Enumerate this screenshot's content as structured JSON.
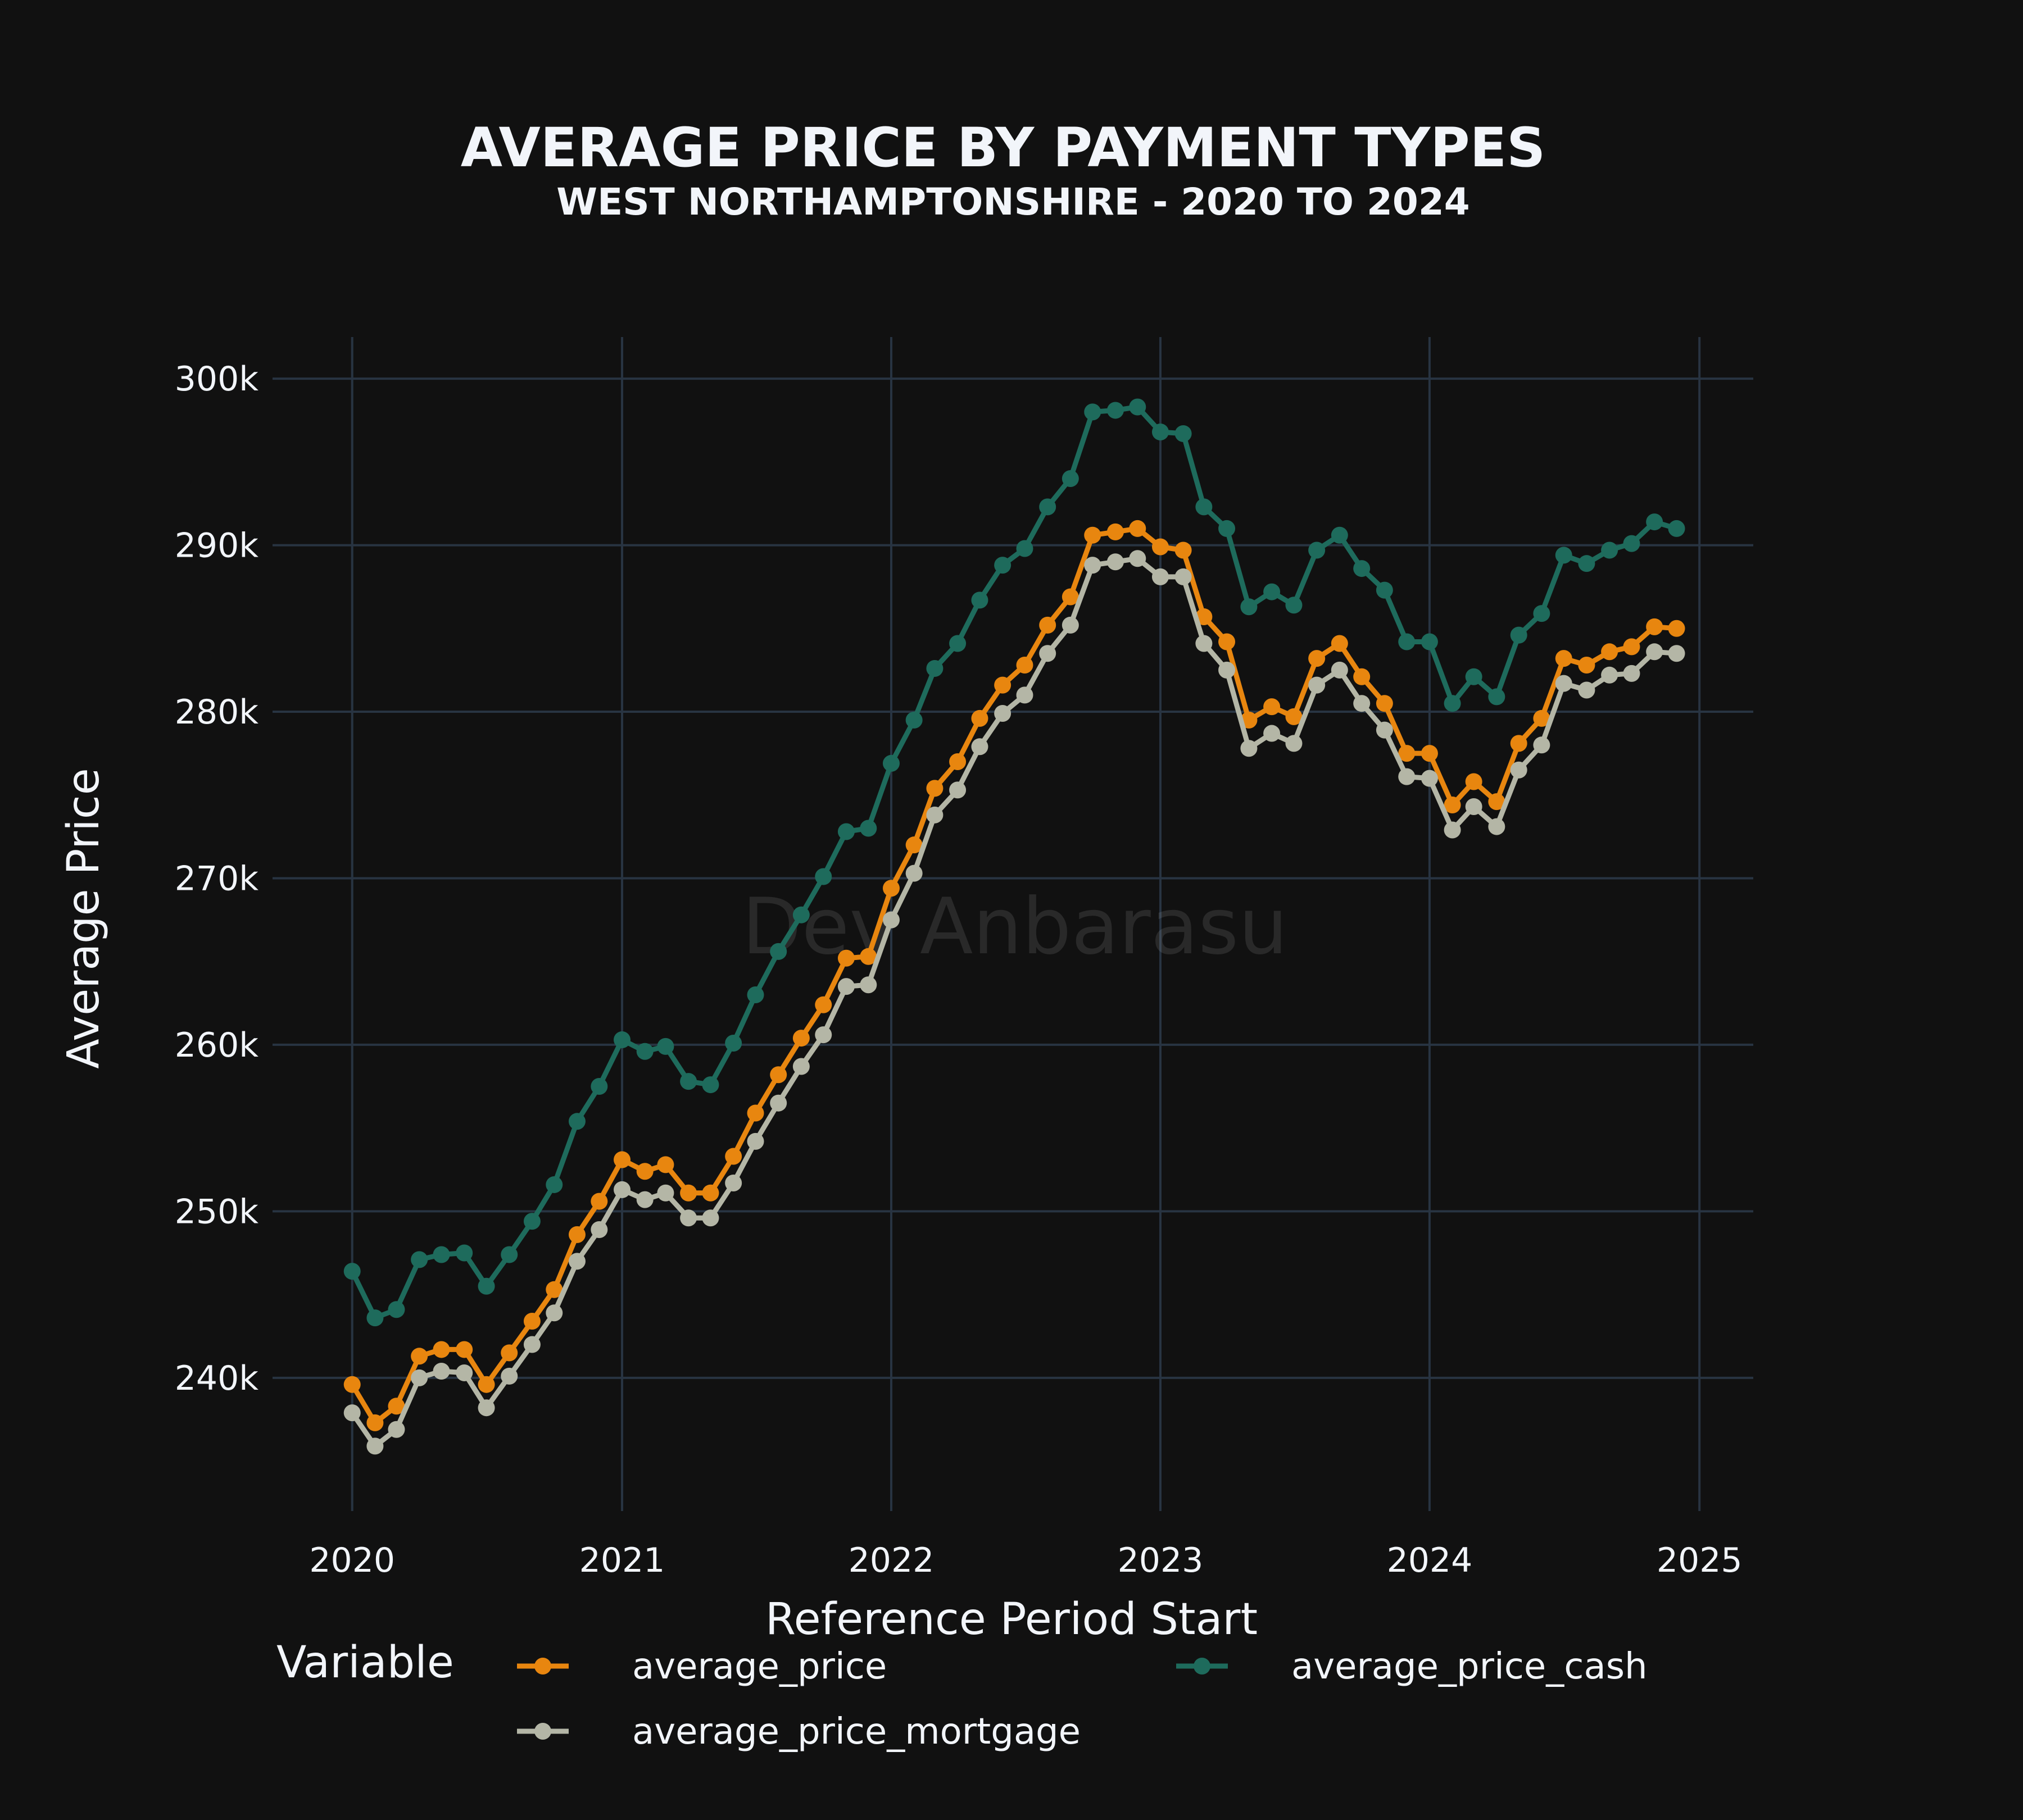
{
  "chart_data": {
    "type": "line",
    "title": "AVERAGE PRICE BY PAYMENT TYPES",
    "subtitle": "WEST NORTHAMPTONSHIRE - 2020 TO 2024",
    "xlabel": "Reference Period Start",
    "ylabel": "Average Price",
    "watermark": "Dev Anbarasu",
    "legend_title": "Variable",
    "legend_position": "bottom",
    "grid": true,
    "xlim": [
      "2019-09-15",
      "2025-03-15"
    ],
    "ylim": [
      232000,
      302500
    ],
    "x_ticks": [
      "2020",
      "2021",
      "2022",
      "2023",
      "2024",
      "2025"
    ],
    "x_tick_values": [
      "2020-01-01",
      "2021-01-01",
      "2022-01-01",
      "2023-01-01",
      "2024-01-01",
      "2025-01-01"
    ],
    "y_ticks": [
      "240k",
      "250k",
      "260k",
      "270k",
      "280k",
      "290k",
      "300k"
    ],
    "y_tick_values": [
      240000,
      250000,
      260000,
      270000,
      280000,
      290000,
      300000
    ],
    "x": [
      "2020-01",
      "2020-02",
      "2020-03",
      "2020-04",
      "2020-05",
      "2020-06",
      "2020-07",
      "2020-08",
      "2020-09",
      "2020-10",
      "2020-11",
      "2020-12",
      "2021-01",
      "2021-02",
      "2021-03",
      "2021-04",
      "2021-05",
      "2021-06",
      "2021-07",
      "2021-08",
      "2021-09",
      "2021-10",
      "2021-11",
      "2021-12",
      "2022-01",
      "2022-02",
      "2022-03",
      "2022-04",
      "2022-05",
      "2022-06",
      "2022-07",
      "2022-08",
      "2022-09",
      "2022-10",
      "2022-11",
      "2022-12",
      "2023-01",
      "2023-02",
      "2023-03",
      "2023-04",
      "2023-05",
      "2023-06",
      "2023-07",
      "2023-08",
      "2023-09",
      "2023-10",
      "2023-11",
      "2023-12",
      "2024-01",
      "2024-02",
      "2024-03",
      "2024-04",
      "2024-05",
      "2024-06",
      "2024-07",
      "2024-08",
      "2024-09",
      "2024-10",
      "2024-11",
      "2024-12"
    ],
    "series": [
      {
        "name": "average_price",
        "color": "#e8860f",
        "values": [
          239600,
          237300,
          238300,
          241300,
          241700,
          241700,
          239600,
          241500,
          243400,
          245300,
          248600,
          250600,
          253100,
          252400,
          252800,
          251100,
          251100,
          253300,
          255900,
          258200,
          260400,
          262400,
          265200,
          265300,
          269400,
          272000,
          275400,
          277000,
          279600,
          281600,
          282800,
          285200,
          286900,
          290600,
          290800,
          291000,
          289900,
          289700,
          285700,
          284200,
          279500,
          280300,
          279700,
          283200,
          284100,
          282100,
          280500,
          277500,
          277500,
          274400,
          275800,
          274600,
          278100,
          279600,
          283200,
          282800,
          283600,
          283900,
          285100,
          285000
        ]
      },
      {
        "name": "average_price_cash",
        "color": "#1e6b5c",
        "values": [
          246400,
          243600,
          244100,
          247100,
          247400,
          247500,
          245500,
          247400,
          249400,
          251600,
          255400,
          257500,
          260300,
          259600,
          259900,
          257800,
          257600,
          260100,
          263000,
          265600,
          267800,
          270100,
          272800,
          273000,
          276900,
          279500,
          282600,
          284100,
          286700,
          288800,
          289800,
          292300,
          294000,
          298000,
          298100,
          298300,
          296800,
          296700,
          292300,
          291000,
          286300,
          287200,
          286400,
          289700,
          290600,
          288600,
          287300,
          284200,
          284200,
          280500,
          282100,
          280900,
          284600,
          285900,
          289400,
          288900,
          289700,
          290100,
          291400,
          291000
        ]
      },
      {
        "name": "average_price_mortgage",
        "color": "#b4b6a6",
        "values": [
          237900,
          235900,
          236900,
          240000,
          240400,
          240300,
          238200,
          240100,
          242000,
          243900,
          247000,
          248900,
          251300,
          250700,
          251100,
          249600,
          249600,
          251700,
          254200,
          256500,
          258700,
          260600,
          263500,
          263600,
          267500,
          270300,
          273800,
          275300,
          277900,
          279900,
          281000,
          283500,
          285200,
          288800,
          289000,
          289200,
          288100,
          288100,
          284100,
          282500,
          277800,
          278700,
          278100,
          281600,
          282500,
          280500,
          278900,
          276100,
          276000,
          272900,
          274300,
          273100,
          276500,
          278000,
          281700,
          281300,
          282200,
          282300,
          283600,
          283500
        ]
      }
    ]
  }
}
